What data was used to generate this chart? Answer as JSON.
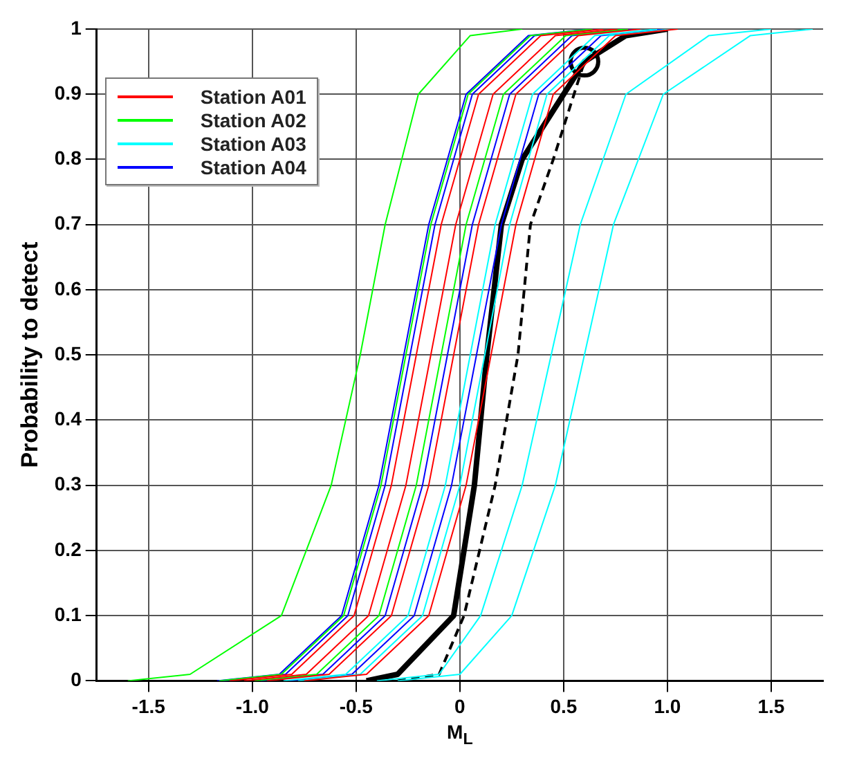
{
  "chart_data": {
    "type": "line",
    "xlabel": "M$_{L}$",
    "ylabel": "Probability to detect",
    "xlim": [
      -1.75,
      1.75
    ],
    "ylim": [
      0,
      1
    ],
    "xticks": [
      {
        "value": -1.5,
        "label": "-1.5"
      },
      {
        "value": -1,
        "label": "-1.0"
      },
      {
        "value": -0.5,
        "label": "-0.5"
      },
      0,
      0.5,
      {
        "value": 1,
        "label": "1.0"
      },
      1.5
    ],
    "yticks": [
      0,
      0.1,
      0.2,
      0.3,
      0.4,
      0.5,
      0.6,
      0.7,
      0.8,
      0.9,
      1
    ],
    "grid": true,
    "legend": "top left",
    "marker": "none",
    "line_style": "solid",
    "series": [
      {
        "name": "Station A01",
        "color": "#ff0000",
        "x": [
          -1.11,
          -0.81,
          -0.51,
          -0.33,
          -0.21,
          -0.09,
          0.09,
          0.39,
          0.69
        ],
        "values": [
          0,
          0.01,
          0.1,
          0.3,
          0.5,
          0.7,
          0.9,
          0.99,
          1
        ]
      },
      {
        "color": "#ff0000",
        "x": [
          -1.04,
          -0.74,
          -0.44,
          -0.26,
          -0.14,
          -0.02,
          0.16,
          0.46,
          0.76
        ],
        "values": [
          0,
          0.01,
          0.1,
          0.3,
          0.5,
          0.7,
          0.9,
          0.99,
          1
        ]
      },
      {
        "color": "#ff0000",
        "x": [
          -0.93,
          -0.63,
          -0.33,
          -0.15,
          -0.03,
          0.09,
          0.27,
          0.57,
          0.87
        ],
        "values": [
          0,
          0.01,
          0.1,
          0.3,
          0.5,
          0.7,
          0.9,
          0.99,
          1
        ]
      },
      {
        "color": "#ff0000",
        "x": [
          -0.75,
          -0.45,
          -0.15,
          0.03,
          0.15,
          0.27,
          0.45,
          0.75,
          1.05
        ],
        "values": [
          0,
          0.01,
          0.1,
          0.3,
          0.5,
          0.7,
          0.9,
          0.99,
          1
        ]
      },
      {
        "name": "Station A02",
        "color": "#00ff00",
        "x": [
          -1.6,
          -1.3,
          -0.86,
          -0.62,
          -0.48,
          -0.36,
          -0.2,
          0.05,
          0.3
        ],
        "values": [
          0,
          0.01,
          0.1,
          0.3,
          0.5,
          0.7,
          0.9,
          0.99,
          1
        ]
      },
      {
        "color": "#00ff00",
        "x": [
          -1.16,
          -0.86,
          -0.56,
          -0.38,
          -0.26,
          -0.14,
          0.04,
          0.34,
          0.64
        ],
        "values": [
          0,
          0.01,
          0.1,
          0.3,
          0.5,
          0.7,
          0.9,
          0.99,
          1
        ]
      },
      {
        "color": "#00ff00",
        "x": [
          -0.99,
          -0.69,
          -0.39,
          -0.21,
          -0.09,
          0.03,
          0.21,
          0.51,
          0.81
        ],
        "values": [
          0,
          0.01,
          0.1,
          0.3,
          0.5,
          0.7,
          0.9,
          0.99,
          1
        ]
      },
      {
        "name": "Station A03",
        "color": "#00ffff",
        "x": [
          -0.85,
          -0.55,
          -0.25,
          -0.07,
          0.05,
          0.17,
          0.35,
          0.65,
          0.95
        ],
        "values": [
          0,
          0.01,
          0.1,
          0.3,
          0.5,
          0.7,
          0.9,
          0.99,
          1
        ]
      },
      {
        "color": "#00ffff",
        "x": [
          -0.78,
          -0.48,
          -0.18,
          0,
          0.12,
          0.24,
          0.42,
          0.72,
          1.02
        ],
        "values": [
          0,
          0.01,
          0.1,
          0.3,
          0.5,
          0.7,
          0.9,
          0.99,
          1
        ]
      },
      {
        "color": "#00ffff",
        "x": [
          -0.4,
          -0.1,
          0.1,
          0.3,
          0.44,
          0.58,
          0.8,
          1.2,
          1.5
        ],
        "values": [
          0,
          0.01,
          0.1,
          0.3,
          0.5,
          0.7,
          0.9,
          0.99,
          1
        ]
      },
      {
        "color": "#00ffff",
        "x": [
          -0.3,
          0,
          0.25,
          0.46,
          0.6,
          0.74,
          0.98,
          1.4,
          1.7
        ],
        "values": [
          0,
          0.01,
          0.1,
          0.3,
          0.5,
          0.7,
          0.9,
          0.99,
          1
        ]
      },
      {
        "name": "Station A04",
        "color": "#0000ff",
        "x": [
          -1.17,
          -0.87,
          -0.57,
          -0.39,
          -0.27,
          -0.15,
          0.03,
          0.33,
          0.63
        ],
        "values": [
          0,
          0.01,
          0.1,
          0.3,
          0.5,
          0.7,
          0.9,
          0.99,
          1
        ]
      },
      {
        "color": "#0000ff",
        "x": [
          -1.14,
          -0.84,
          -0.54,
          -0.36,
          -0.24,
          -0.12,
          0.06,
          0.36,
          0.66
        ],
        "values": [
          0,
          0.01,
          0.1,
          0.3,
          0.5,
          0.7,
          0.9,
          0.99,
          1
        ]
      },
      {
        "color": "#0000ff",
        "x": [
          -0.96,
          -0.66,
          -0.36,
          -0.18,
          -0.06,
          0.06,
          0.24,
          0.54,
          0.84
        ],
        "values": [
          0,
          0.01,
          0.1,
          0.3,
          0.5,
          0.7,
          0.9,
          0.99,
          1
        ]
      },
      {
        "color": "#0000ff",
        "x": [
          -0.82,
          -0.52,
          -0.22,
          -0.04,
          0.08,
          0.2,
          0.38,
          0.68,
          0.98
        ],
        "values": [
          0,
          0.01,
          0.1,
          0.3,
          0.5,
          0.7,
          0.9,
          0.99,
          1
        ]
      },
      {
        "color": "#000000",
        "x": [
          -0.45,
          -0.3,
          -0.03,
          0.07,
          0.13,
          0.2,
          0.3,
          0.5,
          0.6,
          0.8,
          1.0
        ],
        "values": [
          0,
          0.01,
          0.1,
          0.3,
          0.5,
          0.7,
          0.8,
          0.9,
          0.95,
          0.99,
          1
        ]
      },
      {
        "color": "#000000",
        "line_style": "dashed",
        "x": [
          -0.3,
          -0.1,
          0.02,
          0.17,
          0.28,
          0.34,
          0.45,
          0.6,
          0.8,
          1.0
        ],
        "values": [
          0,
          0.01,
          0.1,
          0.3,
          0.5,
          0.7,
          0.8,
          0.95,
          0.99,
          1
        ]
      },
      {
        "type": "scatter",
        "marker": "circle",
        "color": "#000000",
        "x": [
          0.6
        ],
        "values": [
          0.95
        ]
      }
    ]
  }
}
